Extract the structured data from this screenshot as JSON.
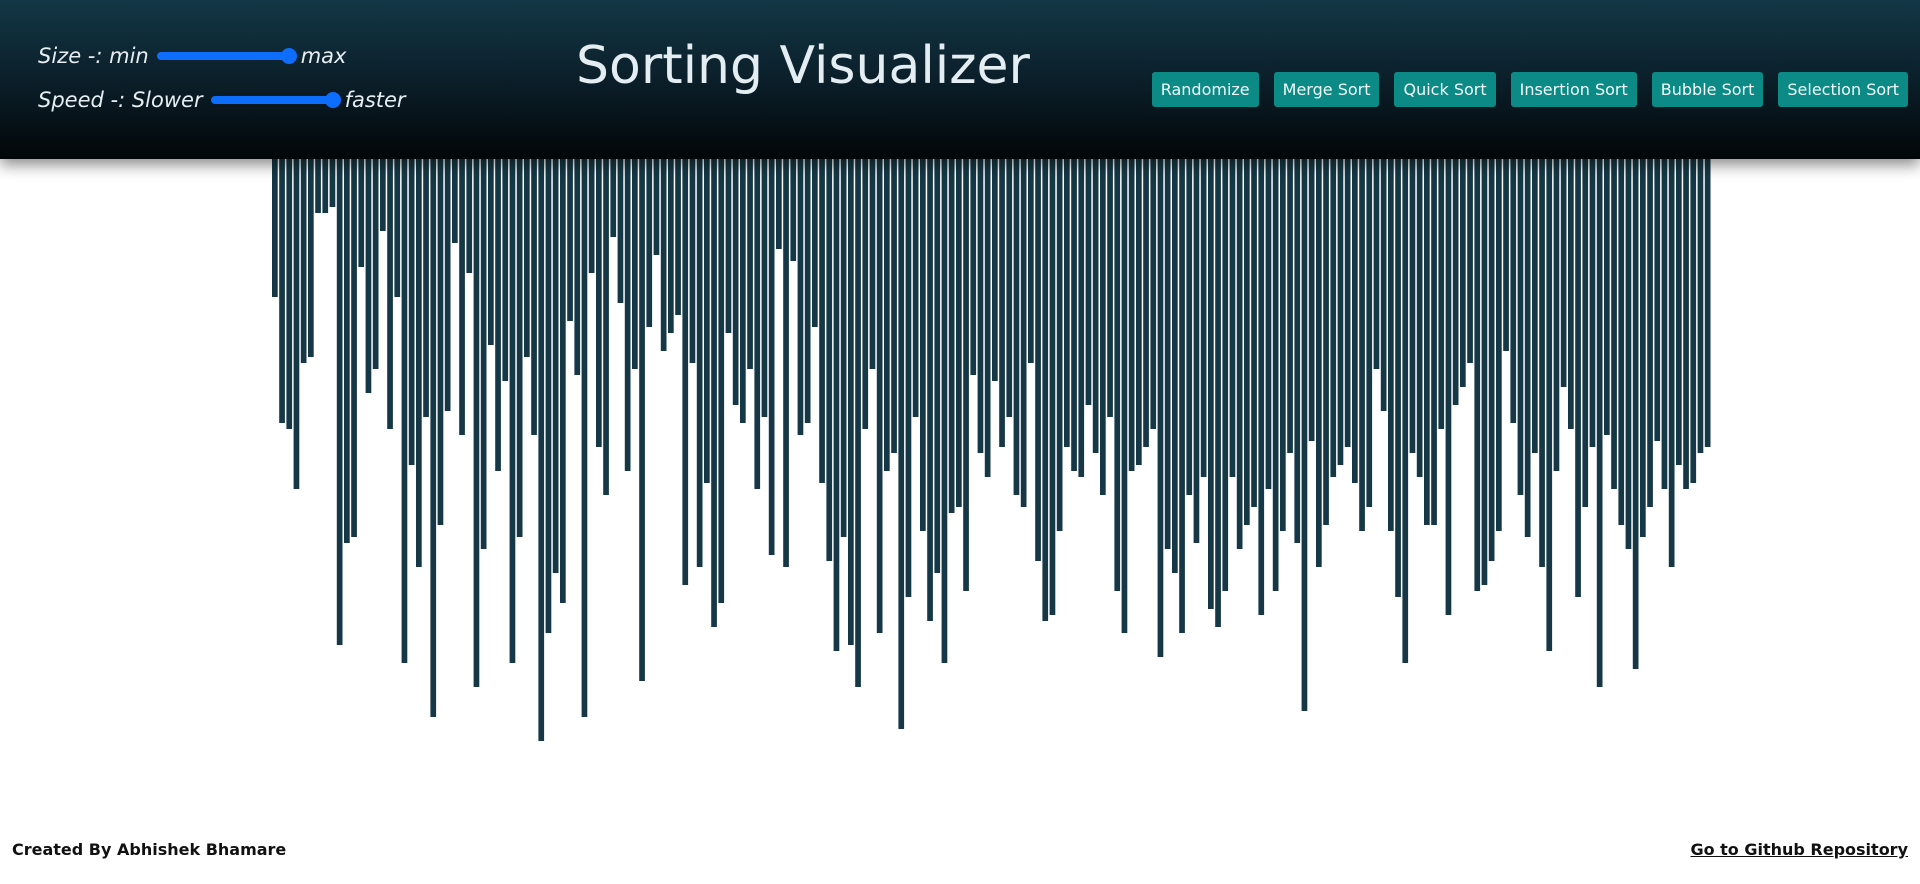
{
  "header": {
    "title": "Sorting Visualizer",
    "size_control": {
      "label": "Size -: min",
      "max_label": "max",
      "level": 1.0
    },
    "speed_control": {
      "label": "Speed -: Slower",
      "max_label": "faster",
      "level": 1.0
    },
    "buttons": {
      "randomize": "Randomize",
      "merge_sort": "Merge Sort",
      "quick_sort": "Quick Sort",
      "insertion_sort": "Insertion Sort",
      "bubble_sort": "Bubble Sort",
      "selection_sort": "Selection Sort"
    }
  },
  "colors": {
    "bar": "#163846",
    "button": "#0b8a86",
    "slider": "#0d6efd"
  },
  "bars": {
    "count": 200,
    "values": [
      0.23,
      0.44,
      0.45,
      0.55,
      0.34,
      0.33,
      0.09,
      0.09,
      0.08,
      0.81,
      0.64,
      0.63,
      0.18,
      0.39,
      0.35,
      0.12,
      0.45,
      0.23,
      0.84,
      0.51,
      0.68,
      0.43,
      0.93,
      0.61,
      0.42,
      0.14,
      0.46,
      0.19,
      0.88,
      0.65,
      0.31,
      0.52,
      0.37,
      0.84,
      0.63,
      0.33,
      0.46,
      0.97,
      0.79,
      0.69,
      0.74,
      0.27,
      0.36,
      0.93,
      0.19,
      0.48,
      0.56,
      0.13,
      0.24,
      0.52,
      0.35,
      0.87,
      0.28,
      0.16,
      0.32,
      0.29,
      0.26,
      0.71,
      0.34,
      0.68,
      0.54,
      0.78,
      0.74,
      0.29,
      0.41,
      0.44,
      0.35,
      0.55,
      0.43,
      0.66,
      0.15,
      0.68,
      0.17,
      0.46,
      0.44,
      0.28,
      0.54,
      0.67,
      0.82,
      0.63,
      0.81,
      0.88,
      0.45,
      0.35,
      0.79,
      0.52,
      0.49,
      0.95,
      0.73,
      0.43,
      0.62,
      0.77,
      0.69,
      0.84,
      0.59,
      0.58,
      0.72,
      0.36,
      0.49,
      0.53,
      0.37,
      0.48,
      0.43,
      0.56,
      0.58,
      0.34,
      0.67,
      0.77,
      0.76,
      0.62,
      0.48,
      0.52,
      0.53,
      0.41,
      0.49,
      0.56,
      0.43,
      0.72,
      0.79,
      0.52,
      0.51,
      0.48,
      0.45,
      0.83,
      0.65,
      0.69,
      0.79,
      0.56,
      0.64,
      0.53,
      0.75,
      0.78,
      0.72,
      0.53,
      0.65,
      0.61,
      0.58,
      0.76,
      0.55,
      0.72,
      0.62,
      0.49,
      0.64,
      0.92,
      0.47,
      0.68,
      0.61,
      0.53,
      0.51,
      0.48,
      0.54,
      0.62,
      0.58,
      0.35,
      0.42,
      0.62,
      0.73,
      0.84,
      0.49,
      0.53,
      0.61,
      0.61,
      0.45,
      0.76,
      0.41,
      0.38,
      0.34,
      0.72,
      0.71,
      0.67,
      0.62,
      0.32,
      0.44,
      0.56,
      0.63,
      0.49,
      0.68,
      0.82,
      0.52,
      0.38,
      0.45,
      0.73,
      0.58,
      0.48,
      0.88,
      0.46,
      0.55,
      0.61,
      0.65,
      0.85,
      0.63,
      0.58,
      0.47,
      0.55,
      0.68,
      0.51,
      0.55,
      0.54,
      0.49,
      0.48
    ]
  },
  "footer": {
    "credit": "Created By Abhishek Bhamare",
    "repo_link": "Go to Github Repository"
  }
}
